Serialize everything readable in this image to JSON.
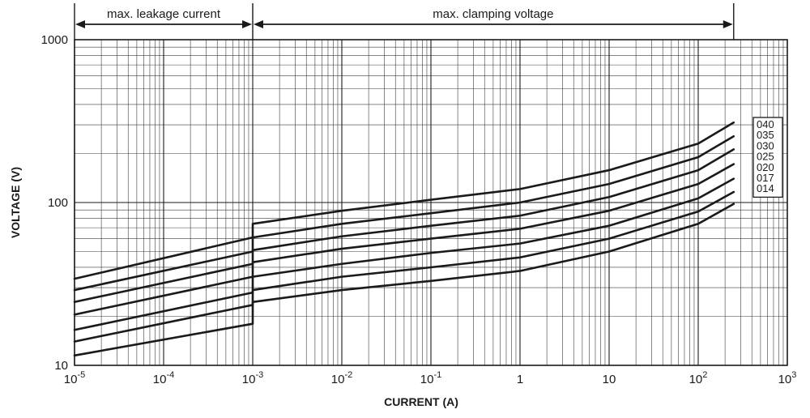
{
  "chart_data": {
    "type": "line",
    "xlabel": "CURRENT (A)",
    "ylabel": "VOLTAGE (V)",
    "xscale": "log",
    "yscale": "log",
    "xlim": [
      1e-05,
      1000
    ],
    "ylim": [
      10,
      1000
    ],
    "grid": true,
    "legend_position": "right",
    "x_tick_labels": [
      {
        "base": "10",
        "exp": "-5"
      },
      {
        "base": "10",
        "exp": "-4"
      },
      {
        "base": "10",
        "exp": "-3"
      },
      {
        "base": "10",
        "exp": "-2"
      },
      {
        "base": "10",
        "exp": "-1"
      },
      {
        "base": "1",
        "exp": ""
      },
      {
        "base": "10",
        "exp": ""
      },
      {
        "base": "10",
        "exp": "2"
      },
      {
        "base": "10",
        "exp": "3"
      }
    ],
    "y_tick_labels": [
      "10",
      "100",
      "1000"
    ],
    "regions": [
      {
        "label": "max. leakage current",
        "x_range": [
          1e-05,
          0.001
        ]
      },
      {
        "label": "max. clamping voltage",
        "x_range": [
          0.001,
          250
        ]
      }
    ],
    "series": [
      {
        "name": "040",
        "points": [
          [
            1e-05,
            34
          ],
          [
            0.001,
            61
          ],
          [
            0.001,
            74
          ],
          [
            0.01,
            89
          ],
          [
            0.1,
            104
          ],
          [
            1,
            121
          ],
          [
            10,
            158
          ],
          [
            100,
            230
          ],
          [
            250,
            310
          ]
        ]
      },
      {
        "name": "035",
        "points": [
          [
            1e-05,
            29
          ],
          [
            0.001,
            50
          ],
          [
            0.001,
            61
          ],
          [
            0.01,
            74
          ],
          [
            0.1,
            86
          ],
          [
            1,
            100
          ],
          [
            10,
            130
          ],
          [
            100,
            190
          ],
          [
            250,
            255
          ]
        ]
      },
      {
        "name": "030",
        "points": [
          [
            1e-05,
            24.5
          ],
          [
            0.001,
            42
          ],
          [
            0.001,
            51
          ],
          [
            0.01,
            62
          ],
          [
            0.1,
            72
          ],
          [
            1,
            83
          ],
          [
            10,
            108
          ],
          [
            100,
            158
          ],
          [
            250,
            212
          ]
        ]
      },
      {
        "name": "025",
        "points": [
          [
            1e-05,
            20.5
          ],
          [
            0.001,
            35
          ],
          [
            0.001,
            43
          ],
          [
            0.01,
            52
          ],
          [
            0.1,
            60
          ],
          [
            1,
            69
          ],
          [
            10,
            89
          ],
          [
            100,
            130
          ],
          [
            250,
            172
          ]
        ]
      },
      {
        "name": "020",
        "points": [
          [
            1e-05,
            16.5
          ],
          [
            0.001,
            28
          ],
          [
            0.001,
            35
          ],
          [
            0.01,
            42
          ],
          [
            0.1,
            49
          ],
          [
            1,
            56
          ],
          [
            10,
            72
          ],
          [
            100,
            106
          ],
          [
            250,
            140
          ]
        ]
      },
      {
        "name": "017",
        "points": [
          [
            1e-05,
            14
          ],
          [
            0.001,
            23.5
          ],
          [
            0.001,
            29
          ],
          [
            0.01,
            35
          ],
          [
            0.1,
            40
          ],
          [
            1,
            46
          ],
          [
            10,
            60
          ],
          [
            100,
            88
          ],
          [
            250,
            116
          ]
        ]
      },
      {
        "name": "014",
        "points": [
          [
            1e-05,
            11.5
          ],
          [
            0.001,
            18
          ],
          [
            0.001,
            24.5
          ],
          [
            0.01,
            29
          ],
          [
            0.1,
            33
          ],
          [
            1,
            38
          ],
          [
            10,
            50
          ],
          [
            100,
            74
          ],
          [
            250,
            98
          ]
        ]
      }
    ]
  }
}
